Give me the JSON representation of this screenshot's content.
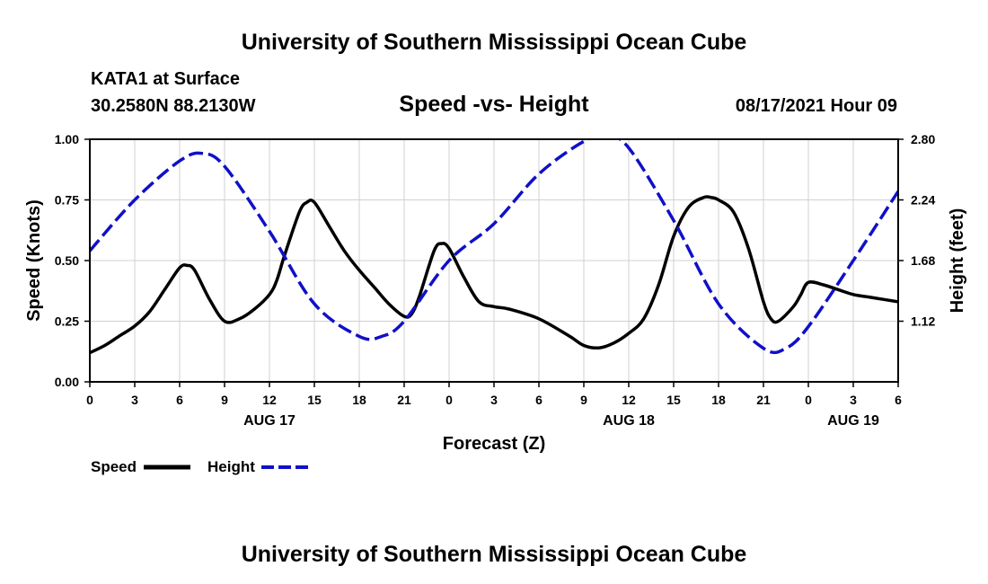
{
  "page": {
    "title": "University of Southern Mississippi Ocean Cube",
    "footer": "University of Southern Mississippi Ocean Cube",
    "station": "KATA1 at Surface",
    "location": "30.2580N  88.2130W",
    "subtitle": "Speed -vs- Height",
    "timestamp": "08/17/2021 Hour 09"
  },
  "colors": {
    "speed": "#000000",
    "height": "#1010c8",
    "grid": "#d0d0d0"
  },
  "chart_data": {
    "type": "line",
    "title": "Speed -vs- Height",
    "xlabel": "Forecast (Z)",
    "ylabel": "Speed (Knots)",
    "y2label": "Height (feet)",
    "x_unit": "hours from 00Z Aug 17",
    "xlim": [
      0,
      54
    ],
    "ylim": [
      0,
      1.0
    ],
    "y2lim": [
      0.56,
      2.8
    ],
    "x_ticks": [
      0,
      3,
      6,
      9,
      12,
      15,
      18,
      21,
      24,
      27,
      30,
      33,
      36,
      39,
      42,
      45,
      48,
      51,
      54
    ],
    "x_tick_labels": [
      "0",
      "3",
      "6",
      "9",
      "12",
      "15",
      "18",
      "21",
      "0",
      "3",
      "6",
      "9",
      "12",
      "15",
      "18",
      "21",
      "0",
      "3",
      "6"
    ],
    "y_ticks": [
      0,
      0.25,
      0.5,
      0.75,
      1.0
    ],
    "y_tick_labels": [
      "0.00",
      "0.25",
      "0.50",
      "0.75",
      "1.00"
    ],
    "y2_ticks": [
      1.12,
      1.68,
      2.24,
      2.8
    ],
    "y2_tick_labels": [
      "1.12",
      "1.68",
      "2.24",
      "2.80"
    ],
    "date_labels": [
      {
        "x": 12,
        "label": "AUG 17"
      },
      {
        "x": 36,
        "label": "AUG 18"
      },
      {
        "x": 51,
        "label": "AUG 19"
      }
    ],
    "grid": true,
    "legend": "bottom-left",
    "series": [
      {
        "name": "Speed",
        "axis": "left",
        "style": "solid",
        "x": [
          0,
          1,
          2,
          3,
          4,
          5,
          6,
          6.5,
          7,
          8,
          9,
          10,
          11,
          12,
          12.5,
          13,
          14,
          14.5,
          15,
          16,
          17,
          18,
          19,
          20,
          21,
          21.5,
          22,
          23,
          23.5,
          24,
          25,
          26,
          27,
          28,
          30,
          32,
          33,
          34,
          35,
          36,
          37,
          38,
          39,
          40,
          41,
          41.5,
          42,
          43,
          44,
          45,
          45.5,
          46,
          47,
          47.5,
          48,
          49,
          50,
          51,
          52,
          53,
          54
        ],
        "values": [
          0.12,
          0.15,
          0.19,
          0.23,
          0.29,
          0.38,
          0.47,
          0.48,
          0.46,
          0.34,
          0.25,
          0.26,
          0.3,
          0.36,
          0.42,
          0.52,
          0.7,
          0.74,
          0.74,
          0.64,
          0.54,
          0.46,
          0.39,
          0.32,
          0.27,
          0.28,
          0.35,
          0.54,
          0.57,
          0.55,
          0.43,
          0.33,
          0.31,
          0.3,
          0.26,
          0.19,
          0.15,
          0.14,
          0.16,
          0.2,
          0.26,
          0.4,
          0.6,
          0.72,
          0.76,
          0.76,
          0.75,
          0.7,
          0.55,
          0.33,
          0.26,
          0.25,
          0.31,
          0.36,
          0.41,
          0.4,
          0.38,
          0.36,
          0.35,
          0.34,
          0.33
        ]
      },
      {
        "name": "Height",
        "axis": "right",
        "style": "dashed",
        "x": [
          0,
          3,
          6,
          7.5,
          9,
          12,
          15,
          18,
          19.5,
          21,
          24,
          27,
          30,
          33,
          34.5,
          36,
          39,
          42,
          45,
          46.5,
          48,
          51,
          54
        ],
        "values": [
          1.77,
          2.24,
          2.6,
          2.67,
          2.55,
          1.95,
          1.28,
          0.98,
          0.98,
          1.12,
          1.68,
          2.02,
          2.48,
          2.78,
          2.83,
          2.72,
          2.05,
          1.28,
          0.87,
          0.87,
          1.07,
          1.68,
          2.32
        ]
      }
    ]
  }
}
